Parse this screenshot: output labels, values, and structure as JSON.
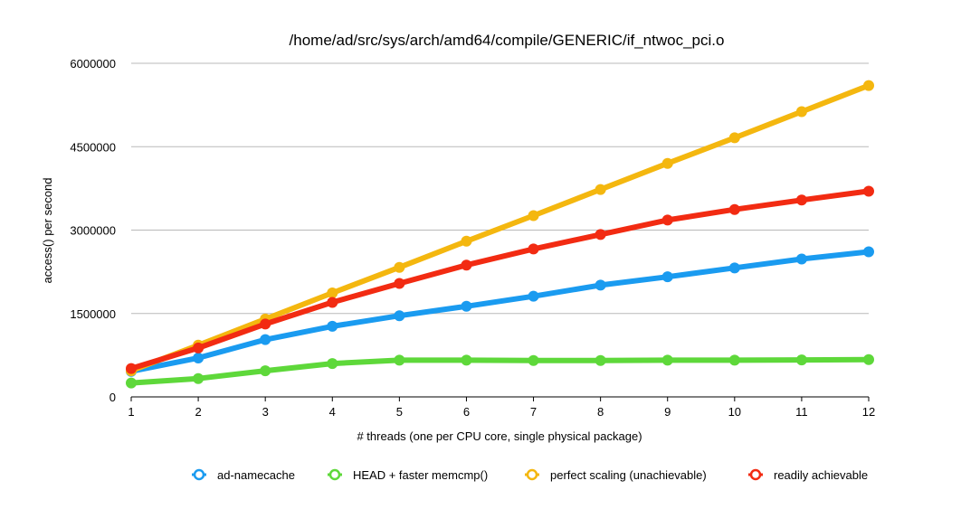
{
  "chart_data": {
    "type": "line",
    "title": "/home/ad/src/sys/arch/amd64/compile/GENERIC/if_ntwoc_pci.o",
    "xlabel": "# threads (one per CPU core, single physical package)",
    "ylabel": "access() per second",
    "x": [
      1,
      2,
      3,
      4,
      5,
      6,
      7,
      8,
      9,
      10,
      11,
      12
    ],
    "xlim": [
      1,
      12
    ],
    "ylim": [
      0,
      6000000
    ],
    "yticks": [
      0,
      1500000,
      3000000,
      4500000,
      6000000
    ],
    "grid": "horizontal",
    "legend_position": "bottom",
    "series": [
      {
        "name": "ad-namecache",
        "color": "#1a9bf0",
        "values": [
          460000,
          700000,
          1030000,
          1270000,
          1460000,
          1630000,
          1810000,
          2010000,
          2160000,
          2320000,
          2480000,
          2610000
        ]
      },
      {
        "name": "HEAD + faster memcmp()",
        "color": "#5ed83a",
        "values": [
          250000,
          330000,
          470000,
          600000,
          660000,
          660000,
          655000,
          655000,
          660000,
          660000,
          665000,
          670000
        ]
      },
      {
        "name": "perfect scaling (unachievable)",
        "color": "#f4b70f",
        "values": [
          470000,
          930000,
          1400000,
          1870000,
          2330000,
          2800000,
          3260000,
          3730000,
          4200000,
          4660000,
          5130000,
          5600000
        ]
      },
      {
        "name": "readily achievable",
        "color": "#f22b12",
        "values": [
          510000,
          880000,
          1310000,
          1700000,
          2040000,
          2370000,
          2660000,
          2920000,
          3180000,
          3370000,
          3540000,
          3700000
        ]
      }
    ]
  }
}
